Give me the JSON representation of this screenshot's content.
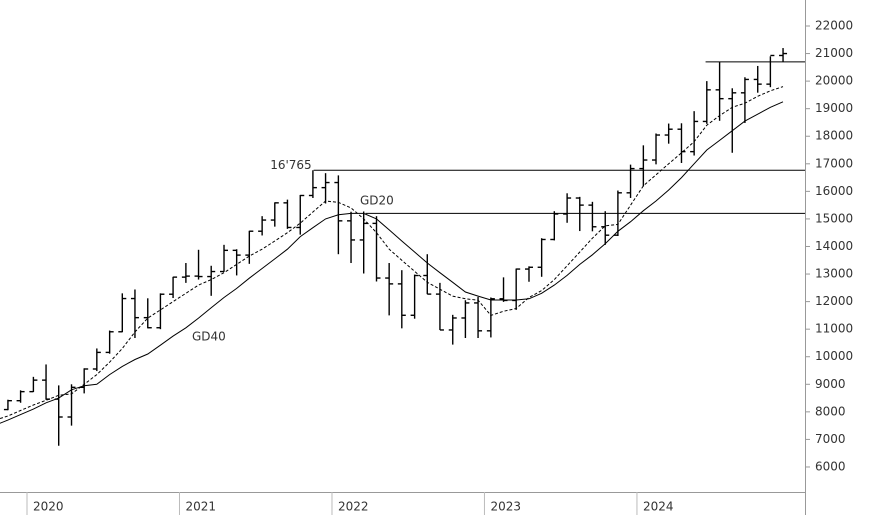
{
  "chart_data": {
    "type": "ohlc",
    "x": [
      2019.792,
      2019.875,
      2019.958,
      2020.042,
      2020.125,
      2020.208,
      2020.292,
      2020.375,
      2020.458,
      2020.542,
      2020.625,
      2020.708,
      2020.792,
      2020.875,
      2020.958,
      2021.042,
      2021.125,
      2021.208,
      2021.292,
      2021.375,
      2021.458,
      2021.542,
      2021.625,
      2021.708,
      2021.792,
      2021.875,
      2021.958,
      2022.042,
      2022.125,
      2022.208,
      2022.292,
      2022.375,
      2022.458,
      2022.542,
      2022.625,
      2022.708,
      2022.792,
      2022.875,
      2022.958,
      2023.042,
      2023.125,
      2023.208,
      2023.292,
      2023.375,
      2023.458,
      2023.542,
      2023.625,
      2023.708,
      2023.792,
      2023.875,
      2023.958,
      2024.042,
      2024.125,
      2024.208,
      2024.292,
      2024.375,
      2024.458,
      2024.542,
      2024.625,
      2024.708,
      2024.792,
      2024.875,
      2024.958
    ],
    "open": [
      7740,
      8083,
      8405,
      8733,
      9151,
      8462,
      7813,
      8890,
      9555,
      10157,
      10905,
      12111,
      11418,
      11052,
      12268,
      12888,
      12925,
      12909,
      13091,
      13860,
      13687,
      14554,
      14959,
      15583,
      14690,
      15850,
      16135,
      16320,
      14930,
      14237,
      14838,
      12855,
      12643,
      11504,
      12947,
      12272,
      10971,
      11406,
      11952,
      10940,
      12102,
      12042,
      13181,
      13246,
      14254,
      15179,
      15758,
      15501,
      14715,
      14410,
      15947,
      16826,
      17137,
      18044,
      18255,
      17441,
      18537,
      19683,
      19363,
      19575,
      20061,
      19890,
      20930
    ],
    "high": [
      8100,
      8440,
      8780,
      9270,
      9720,
      8960,
      9000,
      9580,
      10300,
      10950,
      12300,
      12440,
      12120,
      12300,
      12900,
      13400,
      13880,
      13300,
      14060,
      13900,
      14570,
      15100,
      15600,
      15700,
      15870,
      16765,
      16660,
      16580,
      15260,
      15270,
      15100,
      13400,
      13140,
      12980,
      13720,
      12680,
      11520,
      12050,
      12170,
      12150,
      12880,
      13200,
      13280,
      14300,
      15280,
      15930,
      15800,
      15620,
      15280,
      16030,
      16970,
      17670,
      18100,
      18460,
      18470,
      18910,
      20000,
      20690,
      19740,
      20140,
      20550,
      20900,
      21200
    ],
    "low": [
      7550,
      8060,
      8330,
      8720,
      8440,
      6770,
      7500,
      8670,
      9480,
      10110,
      10890,
      10680,
      11030,
      11000,
      12130,
      12680,
      12800,
      12210,
      13080,
      12950,
      13370,
      14400,
      14720,
      14640,
      14430,
      15760,
      15560,
      13720,
      13400,
      13020,
      12730,
      11500,
      11030,
      11380,
      12270,
      10970,
      10440,
      10680,
      10680,
      10700,
      11990,
      11700,
      12720,
      12900,
      14220,
      14860,
      14560,
      14550,
      14060,
      14380,
      15760,
      16180,
      16980,
      17730,
      17030,
      17300,
      18450,
      18560,
      17400,
      18480,
      19580,
      19780,
      20700
    ],
    "close": [
      8083,
      8405,
      8733,
      9151,
      8462,
      7813,
      8890,
      9555,
      10157,
      10905,
      12111,
      11418,
      11052,
      12268,
      12888,
      12925,
      12909,
      13091,
      13860,
      13687,
      14554,
      14959,
      15583,
      14690,
      15850,
      16135,
      16320,
      14930,
      14237,
      14838,
      12855,
      12643,
      11504,
      12947,
      12272,
      10971,
      11406,
      11952,
      10940,
      12102,
      12042,
      13181,
      13246,
      14254,
      15179,
      15758,
      15501,
      14715,
      14410,
      15947,
      16826,
      17137,
      18044,
      18255,
      17441,
      18537,
      19683,
      19363,
      19575,
      20061,
      19890,
      20930,
      21000
    ],
    "averages": [
      {
        "name": "GD20",
        "dashed": true,
        "values": [
          7700,
          7850,
          8050,
          8250,
          8420,
          8600,
          8650,
          9000,
          9350,
          9800,
          10300,
          10900,
          11400,
          11700,
          12000,
          12300,
          12600,
          12800,
          13050,
          13350,
          13650,
          13900,
          14200,
          14500,
          14850,
          15250,
          15650,
          15600,
          15400,
          15000,
          14500,
          13900,
          13500,
          13100,
          12700,
          12450,
          12200,
          12100,
          12050,
          11500,
          11650,
          11750,
          12150,
          12400,
          12800,
          13300,
          13800,
          14300,
          14750,
          14800,
          15500,
          16200,
          16600,
          17000,
          17400,
          17800,
          18400,
          18750,
          19050,
          19200,
          19450,
          19650,
          19800
        ]
      },
      {
        "name": "GD40",
        "dashed": false,
        "values": [
          7520,
          7700,
          7900,
          8100,
          8330,
          8500,
          8800,
          8950,
          9000,
          9350,
          9650,
          9900,
          10100,
          10420,
          10750,
          11050,
          11400,
          11780,
          12150,
          12480,
          12850,
          13200,
          13550,
          13900,
          14360,
          14680,
          15000,
          15150,
          15200,
          15200,
          15000,
          14600,
          14200,
          13800,
          13400,
          13050,
          12700,
          12350,
          12200,
          12060,
          12060,
          12060,
          12100,
          12300,
          12600,
          12950,
          13350,
          13700,
          14100,
          14550,
          14900,
          15300,
          15650,
          16050,
          16500,
          17000,
          17500,
          17850,
          18200,
          18550,
          18800,
          19050,
          19250
        ]
      }
    ],
    "levels": [
      {
        "value": 20700,
        "from": 2024.45
      },
      {
        "value": 16765,
        "from": 2021.88,
        "label": "16'765"
      },
      {
        "value": 15200,
        "from": 2022.22
      }
    ],
    "color": "#000000",
    "xlim": [
      2019.823,
      2025.102
    ],
    "xticks": [
      2020,
      2021,
      2022,
      2023,
      2024
    ],
    "ylim": [
      5092,
      22943
    ],
    "yticks": [
      6000,
      7000,
      8000,
      9000,
      10000,
      11000,
      12000,
      13000,
      14000,
      15000,
      16000,
      17000,
      18000,
      19000,
      20000,
      21000,
      22000
    ]
  }
}
